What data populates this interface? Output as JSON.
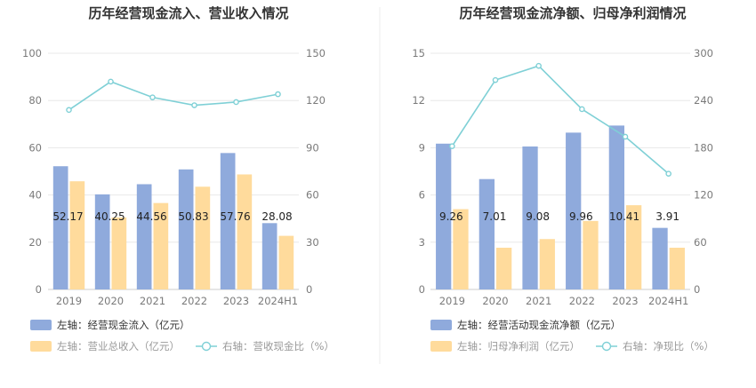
{
  "colors": {
    "bar_left": "#8faadc",
    "bar_right": "#ffdb9c",
    "line": "#7fd0d6",
    "legend_primary_text": "#333333",
    "legend_secondary_text": "#999999",
    "grid": "#e8e8e8",
    "divider": "#eeeeee"
  },
  "chart_data": [
    {
      "type": "bar",
      "title": "历年经营现金流入、营业收入情况",
      "categories": [
        "2019",
        "2020",
        "2021",
        "2022",
        "2023",
        "2024H1"
      ],
      "series": [
        {
          "name": "左轴：经营现金流入（亿元）",
          "axis": "left",
          "kind": "bar",
          "values": [
            52.17,
            40.25,
            44.56,
            50.83,
            57.76,
            28.08
          ],
          "labels": [
            "52.17",
            "40.25",
            "44.56",
            "50.83",
            "57.76",
            "28.08"
          ]
        },
        {
          "name": "左轴：营业总收入（亿元）",
          "axis": "left",
          "kind": "bar",
          "values": [
            45.8,
            30.5,
            36.6,
            43.5,
            48.7,
            22.7
          ]
        },
        {
          "name": "右轴：营收现金比（%）",
          "axis": "right",
          "kind": "line",
          "values": [
            114,
            132,
            122,
            117,
            119,
            124
          ]
        }
      ],
      "y_left": {
        "min": 0,
        "max": 100,
        "ticks": [
          "0",
          "20",
          "40",
          "60",
          "80",
          "100"
        ]
      },
      "y_right": {
        "min": 0,
        "max": 150,
        "ticks": [
          "0",
          "30",
          "60",
          "90",
          "120",
          "150"
        ]
      },
      "grid": true,
      "legend_position": "bottom"
    },
    {
      "type": "bar",
      "title": "历年经营现金流净额、归母净利润情况",
      "categories": [
        "2019",
        "2020",
        "2021",
        "2022",
        "2023",
        "2024H1"
      ],
      "series": [
        {
          "name": "左轴：经营活动现金流净额（亿元）",
          "axis": "left",
          "kind": "bar",
          "values": [
            9.26,
            7.01,
            9.08,
            9.96,
            10.41,
            3.91
          ],
          "labels": [
            "9.26",
            "7.01",
            "9.08",
            "9.96",
            "10.41",
            "3.91"
          ]
        },
        {
          "name": "左轴：归母净利润（亿元）",
          "axis": "left",
          "kind": "bar",
          "values": [
            5.1,
            2.65,
            3.2,
            4.35,
            5.35,
            2.65
          ]
        },
        {
          "name": "右轴：净现比（%）",
          "axis": "right",
          "kind": "line",
          "values": [
            182,
            266,
            284,
            229,
            194,
            147
          ]
        }
      ],
      "y_left": {
        "min": 0,
        "max": 15,
        "ticks": [
          "0",
          "3",
          "6",
          "9",
          "12",
          "15"
        ]
      },
      "y_right": {
        "min": 0,
        "max": 300,
        "ticks": [
          "0",
          "60",
          "120",
          "180",
          "240",
          "300"
        ]
      },
      "grid": true,
      "legend_position": "bottom"
    }
  ]
}
